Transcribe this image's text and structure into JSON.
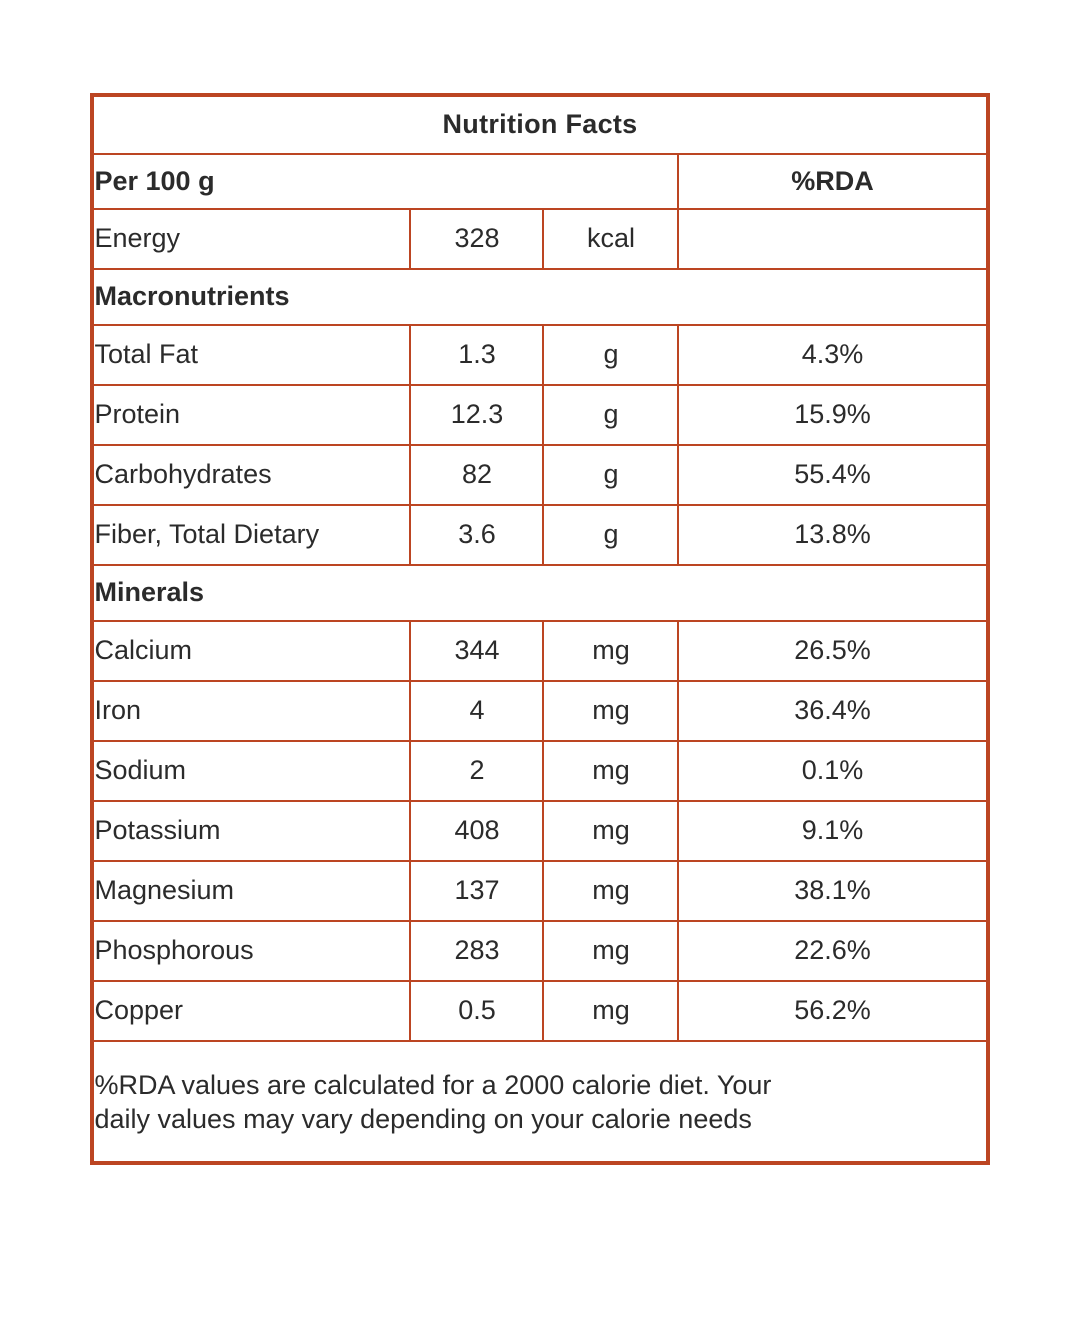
{
  "colors": {
    "border": "#bc4522",
    "text": "#2b2b2b",
    "background": "#ffffff"
  },
  "table": {
    "title": "Nutrition Facts",
    "serving_header": "Per 100 g",
    "rda_header": "%RDA",
    "energy": {
      "name": "Energy",
      "value": "328",
      "unit": "kcal",
      "rda": ""
    },
    "sections": [
      {
        "label": "Macronutrients",
        "rows": [
          {
            "name": "Total Fat",
            "value": "1.3",
            "unit": "g",
            "rda": "4.3%"
          },
          {
            "name": "Protein",
            "value": "12.3",
            "unit": "g",
            "rda": "15.9%"
          },
          {
            "name": "Carbohydrates",
            "value": "82",
            "unit": "g",
            "rda": "55.4%"
          },
          {
            "name": "Fiber, Total Dietary",
            "value": "3.6",
            "unit": "g",
            "rda": "13.8%"
          }
        ]
      },
      {
        "label": "Minerals",
        "rows": [
          {
            "name": "Calcium",
            "value": "344",
            "unit": "mg",
            "rda": "26.5%"
          },
          {
            "name": "Iron",
            "value": "4",
            "unit": "mg",
            "rda": "36.4%"
          },
          {
            "name": "Sodium",
            "value": "2",
            "unit": "mg",
            "rda": "0.1%"
          },
          {
            "name": "Potassium",
            "value": "408",
            "unit": "mg",
            "rda": "9.1%"
          },
          {
            "name": "Magnesium",
            "value": "137",
            "unit": "mg",
            "rda": "38.1%"
          },
          {
            "name": "Phosphorous",
            "value": "283",
            "unit": "mg",
            "rda": "22.6%"
          },
          {
            "name": "Copper",
            "value": "0.5",
            "unit": "mg",
            "rda": "56.2%"
          }
        ]
      }
    ],
    "footnote_line1": "%RDA values are calculated for a 2000 calorie diet. Your",
    "footnote_line2": "daily values may vary depending on your calorie needs"
  }
}
